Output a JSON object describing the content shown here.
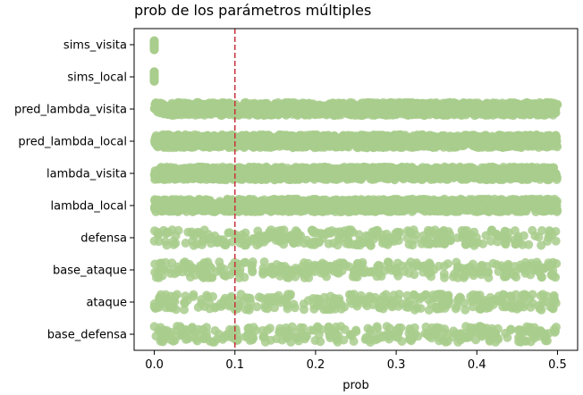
{
  "chart_data": {
    "type": "scatter",
    "title": "prob de los parámetros múltiples",
    "xlabel": "prob",
    "ylabel": "",
    "xlim": [
      -0.025,
      0.525
    ],
    "xticks": [
      "0.0",
      "0.1",
      "0.2",
      "0.3",
      "0.4",
      "0.5"
    ],
    "xtick_values": [
      0.0,
      0.1,
      0.2,
      0.3,
      0.4,
      0.5
    ],
    "reference_line": {
      "x": 0.1,
      "style": "dashed",
      "color": "#c8323c"
    },
    "point_color": "#a8cc8c",
    "grid": false,
    "categories": [
      "sims_visita",
      "sims_local",
      "pred_lambda_visita",
      "pred_lambda_local",
      "lambda_visita",
      "lambda_local",
      "defensa",
      "base_ataque",
      "ataque",
      "base_defensa"
    ],
    "series": [
      {
        "category": "sims_visita",
        "range": [
          0.0,
          0.0
        ],
        "count": 40,
        "jitter": 0.16
      },
      {
        "category": "sims_local",
        "range": [
          0.0,
          0.0
        ],
        "count": 40,
        "jitter": 0.16
      },
      {
        "category": "pred_lambda_visita",
        "range": [
          0.0,
          0.5
        ],
        "count": 1400,
        "jitter": 0.2
      },
      {
        "category": "pred_lambda_local",
        "range": [
          0.0,
          0.5
        ],
        "count": 1400,
        "jitter": 0.2
      },
      {
        "category": "lambda_visita",
        "range": [
          0.0,
          0.5
        ],
        "count": 1400,
        "jitter": 0.2
      },
      {
        "category": "lambda_local",
        "range": [
          0.0,
          0.5
        ],
        "count": 1400,
        "jitter": 0.2
      },
      {
        "category": "defensa",
        "range": [
          0.0,
          0.5
        ],
        "count": 300,
        "jitter": 0.25
      },
      {
        "category": "base_ataque",
        "range": [
          0.0,
          0.5
        ],
        "count": 300,
        "jitter": 0.25
      },
      {
        "category": "ataque",
        "range": [
          0.0,
          0.5
        ],
        "count": 300,
        "jitter": 0.25
      },
      {
        "category": "base_defensa",
        "range": [
          0.0,
          0.5
        ],
        "count": 300,
        "jitter": 0.25
      }
    ]
  }
}
